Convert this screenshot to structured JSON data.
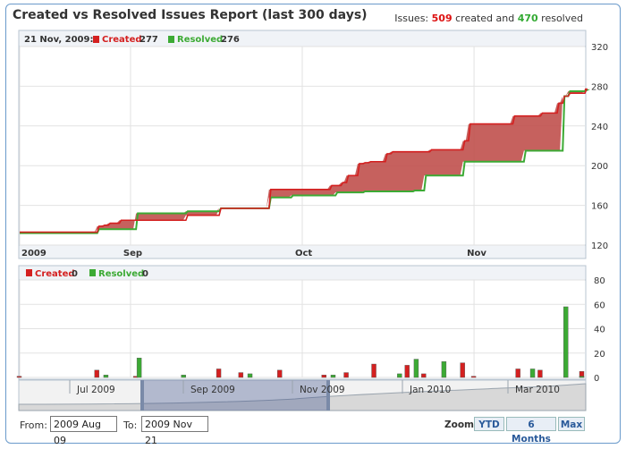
{
  "title": "Created vs Resolved Issues Report (last 300 days)",
  "summary": {
    "prefix": "Issues:",
    "created": "509",
    "mid": "created and",
    "resolved": "470",
    "suffix": "resolved"
  },
  "top_legend": {
    "date": "21 Nov, 2009:",
    "created_label": "Created",
    "created_value": "277",
    "resolved_label": "Resolved",
    "resolved_value": "276"
  },
  "bottom_legend": {
    "created_label": "Created",
    "created_value": "0",
    "resolved_label": "Resolved",
    "resolved_value": "0"
  },
  "navigator_labels": [
    "Jul 2009",
    "Sep 2009",
    "Nov 2009",
    "Jan 2010",
    "Mar 2010"
  ],
  "controls": {
    "from_label": "From:",
    "from_value": "2009 Aug 09",
    "to_label": "To:",
    "to_value": "2009 Nov 21",
    "zoom_label": "Zoom:",
    "zoom_options": [
      "YTD",
      "6 Months",
      "Max"
    ]
  },
  "colors": {
    "created": "#d42020",
    "resolved": "#3caa34",
    "area_fill": "#c0504d"
  },
  "chart_data": [
    {
      "type": "area",
      "title": "",
      "x_tick_labels": [
        "2009",
        "Sep",
        "Oct",
        "Nov"
      ],
      "x_tick_days": [
        0,
        20,
        51,
        82
      ],
      "ylim": [
        120,
        320
      ],
      "y_ticks": [
        120,
        160,
        200,
        240,
        280,
        320
      ],
      "series": [
        {
          "name": "Created",
          "x": [
            0,
            8,
            14,
            15,
            16,
            18,
            21,
            30,
            36,
            45,
            47,
            49,
            51,
            56,
            58,
            59,
            61,
            62,
            63,
            66,
            67,
            71,
            74,
            80,
            81,
            86,
            89,
            94,
            97,
            98,
            99,
            102
          ],
          "values": [
            133,
            133,
            139,
            140,
            142,
            145,
            145,
            150,
            157,
            176,
            176,
            176,
            176,
            180,
            183,
            190,
            202,
            203,
            204,
            212,
            214,
            214,
            216,
            225,
            242,
            242,
            250,
            253,
            263,
            270,
            273,
            277
          ]
        },
        {
          "name": "Resolved",
          "x": [
            0,
            14,
            21,
            30,
            36,
            45,
            49,
            57,
            62,
            71,
            73,
            80,
            91,
            98,
            99,
            102
          ],
          "values": [
            132,
            136,
            152,
            154,
            157,
            168,
            170,
            173,
            174,
            175,
            190,
            204,
            215,
            270,
            275,
            276
          ]
        }
      ]
    },
    {
      "type": "bar",
      "title": "",
      "ylim": [
        0,
        80
      ],
      "y_ticks": [
        0,
        20,
        40,
        60,
        80
      ],
      "series": [
        {
          "name": "Created",
          "x": [
            0,
            14,
            21,
            36,
            40,
            47,
            55,
            59,
            64,
            70,
            73,
            80,
            82,
            90,
            94,
            102
          ],
          "values": [
            1,
            6,
            1,
            7,
            4,
            6,
            2,
            4,
            11,
            10,
            3,
            12,
            1,
            7,
            6,
            5
          ]
        },
        {
          "name": "Resolved",
          "x": [
            15,
            21,
            29,
            41,
            56,
            68,
            71,
            76,
            92,
            98,
            102
          ],
          "values": [
            2,
            16,
            2,
            3,
            2,
            3,
            15,
            13,
            7,
            58,
            1
          ]
        }
      ]
    }
  ]
}
